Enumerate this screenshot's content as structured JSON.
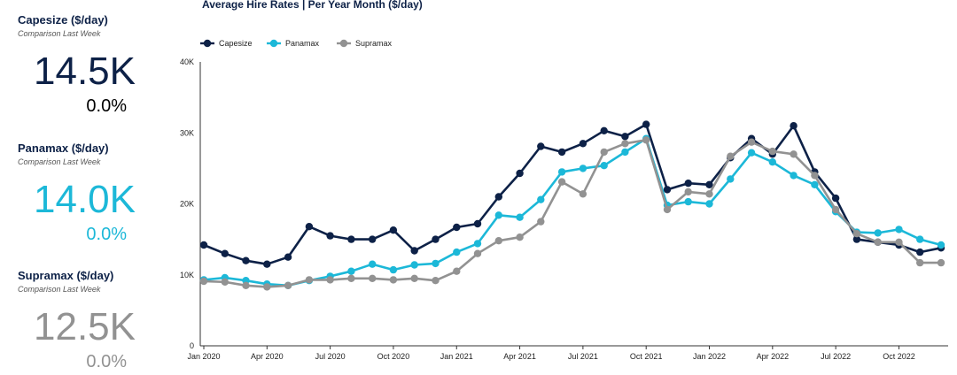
{
  "kpis": [
    {
      "title": "Capesize ($/day)",
      "subtitle": "Comparison Last Week",
      "value": "14.5K",
      "delta": "0.0%",
      "color": "#0d2147"
    },
    {
      "title": "Panamax ($/day)",
      "subtitle": "Comparison Last Week",
      "value": "14.0K",
      "delta": "0.0%",
      "color": "#1cb8d8"
    },
    {
      "title": "Supramax ($/day)",
      "subtitle": "Comparison Last Week",
      "value": "12.5K",
      "delta": "0.0%",
      "color": "#929292"
    }
  ],
  "chart_data": {
    "type": "line",
    "title": "Average Hire Rates | Per Year Month ($/day)",
    "xlabel": "",
    "ylabel": "",
    "ylim": [
      0,
      40000
    ],
    "yticks": [
      0,
      10000,
      20000,
      30000,
      40000
    ],
    "ytick_labels": [
      "0",
      "10K",
      "20K",
      "30K",
      "40K"
    ],
    "xticks": [
      "2020-01",
      "2020-04",
      "2020-07",
      "2020-10",
      "2021-01",
      "2021-04",
      "2021-07",
      "2021-10",
      "2022-01",
      "2022-04",
      "2022-07",
      "2022-10"
    ],
    "xtick_labels": [
      "Jan 2020",
      "Apr 2020",
      "Jul 2020",
      "Oct 2020",
      "Jan 2021",
      "Apr 2021",
      "Jul 2021",
      "Oct 2021",
      "Jan 2022",
      "Apr 2022",
      "Jul 2022",
      "Oct 2022"
    ],
    "grid": false,
    "legend_position": "top-left",
    "series": [
      {
        "name": "Capesize",
        "color": "#0d2147",
        "points": [
          [
            "2020-01",
            14200
          ],
          [
            "2020-02",
            13000
          ],
          [
            "2020-03",
            12000
          ],
          [
            "2020-04",
            11500
          ],
          [
            "2020-05",
            12500
          ],
          [
            "2020-06",
            16800
          ],
          [
            "2020-07",
            15500
          ],
          [
            "2020-08",
            15000
          ],
          [
            "2020-09",
            15000
          ],
          [
            "2020-10",
            16300
          ],
          [
            "2020-11",
            13400
          ],
          [
            "2020-12",
            15000
          ],
          [
            "2021-01",
            16700
          ],
          [
            "2021-02",
            17200
          ],
          [
            "2021-03",
            21000
          ],
          [
            "2021-04",
            24300
          ],
          [
            "2021-05",
            28100
          ],
          [
            "2021-06",
            27300
          ],
          [
            "2021-07",
            28500
          ],
          [
            "2021-08",
            30300
          ],
          [
            "2021-09",
            29500
          ],
          [
            "2021-10",
            31200
          ],
          [
            "2021-11",
            22000
          ],
          [
            "2021-12",
            22900
          ],
          [
            "2022-01",
            22700
          ],
          [
            "2022-02",
            26500
          ],
          [
            "2022-03",
            29200
          ],
          [
            "2022-04",
            27000
          ],
          [
            "2022-05",
            31000
          ],
          [
            "2022-06",
            24500
          ],
          [
            "2022-07",
            20800
          ],
          [
            "2022-08",
            15000
          ],
          [
            "2022-09",
            14600
          ],
          [
            "2022-10",
            14200
          ],
          [
            "2022-11",
            13200
          ],
          [
            "2022-12",
            13800
          ]
        ]
      },
      {
        "name": "Panamax",
        "color": "#1cb8d8",
        "points": [
          [
            "2020-01",
            9300
          ],
          [
            "2020-02",
            9600
          ],
          [
            "2020-03",
            9200
          ],
          [
            "2020-04",
            8700
          ],
          [
            "2020-05",
            8500
          ],
          [
            "2020-06",
            9200
          ],
          [
            "2020-07",
            9800
          ],
          [
            "2020-08",
            10500
          ],
          [
            "2020-09",
            11500
          ],
          [
            "2020-10",
            10700
          ],
          [
            "2020-11",
            11400
          ],
          [
            "2020-12",
            11600
          ],
          [
            "2021-01",
            13200
          ],
          [
            "2021-02",
            14400
          ],
          [
            "2021-03",
            18400
          ],
          [
            "2021-04",
            18100
          ],
          [
            "2021-05",
            20600
          ],
          [
            "2021-06",
            24500
          ],
          [
            "2021-07",
            25000
          ],
          [
            "2021-08",
            25400
          ],
          [
            "2021-09",
            27300
          ],
          [
            "2021-10",
            29200
          ],
          [
            "2021-11",
            19800
          ],
          [
            "2021-12",
            20300
          ],
          [
            "2022-01",
            20000
          ],
          [
            "2022-02",
            23500
          ],
          [
            "2022-03",
            27200
          ],
          [
            "2022-04",
            25900
          ],
          [
            "2022-05",
            24000
          ],
          [
            "2022-06",
            22700
          ],
          [
            "2022-07",
            18900
          ],
          [
            "2022-08",
            16000
          ],
          [
            "2022-09",
            15900
          ],
          [
            "2022-10",
            16400
          ],
          [
            "2022-11",
            15000
          ],
          [
            "2022-12",
            14200
          ]
        ]
      },
      {
        "name": "Supramax",
        "color": "#929292",
        "points": [
          [
            "2020-01",
            9100
          ],
          [
            "2020-02",
            9000
          ],
          [
            "2020-03",
            8500
          ],
          [
            "2020-04",
            8300
          ],
          [
            "2020-05",
            8500
          ],
          [
            "2020-06",
            9300
          ],
          [
            "2020-07",
            9300
          ],
          [
            "2020-08",
            9500
          ],
          [
            "2020-09",
            9500
          ],
          [
            "2020-10",
            9300
          ],
          [
            "2020-11",
            9500
          ],
          [
            "2020-12",
            9200
          ],
          [
            "2021-01",
            10500
          ],
          [
            "2021-02",
            13000
          ],
          [
            "2021-03",
            14800
          ],
          [
            "2021-04",
            15300
          ],
          [
            "2021-05",
            17500
          ],
          [
            "2021-06",
            23100
          ],
          [
            "2021-07",
            21400
          ],
          [
            "2021-08",
            27300
          ],
          [
            "2021-09",
            28500
          ],
          [
            "2021-10",
            29000
          ],
          [
            "2021-11",
            19200
          ],
          [
            "2021-12",
            21700
          ],
          [
            "2022-01",
            21400
          ],
          [
            "2022-02",
            26700
          ],
          [
            "2022-03",
            28700
          ],
          [
            "2022-04",
            27400
          ],
          [
            "2022-05",
            27000
          ],
          [
            "2022-06",
            24000
          ],
          [
            "2022-07",
            19200
          ],
          [
            "2022-08",
            15800
          ],
          [
            "2022-09",
            14600
          ],
          [
            "2022-10",
            14600
          ],
          [
            "2022-11",
            11700
          ],
          [
            "2022-12",
            11700
          ]
        ]
      }
    ]
  }
}
